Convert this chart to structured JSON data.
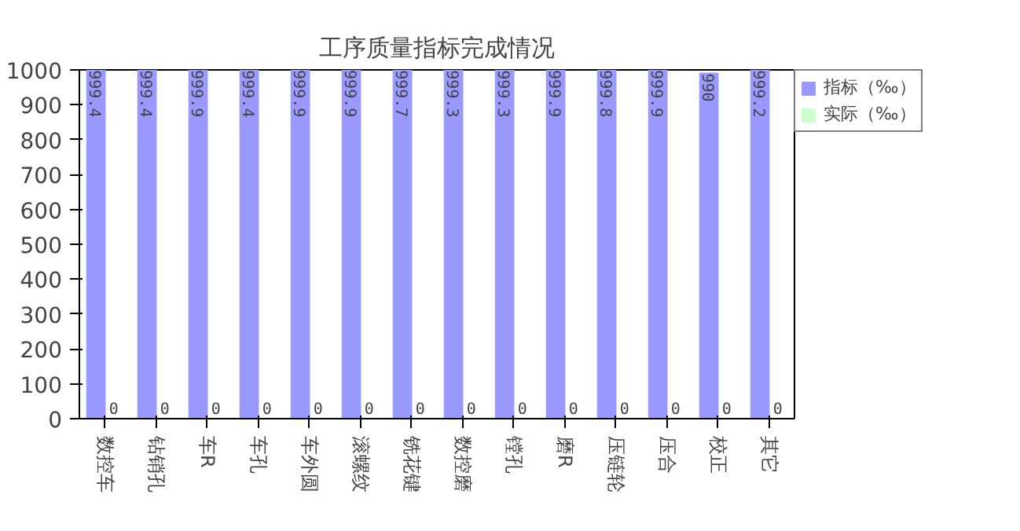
{
  "chart_data": {
    "type": "bar",
    "title": "工序质量指标完成情况",
    "categories": [
      "数控车",
      "钻销孔",
      "车R",
      "车孔",
      "车外圆",
      "滚螺纹",
      "铣花键",
      "数控磨",
      "镗孔",
      "磨R",
      "压链轮",
      "压合",
      "校正",
      "其它"
    ],
    "series": [
      {
        "name": "指标（‰）",
        "color": "#9999ff",
        "values": [
          999.4,
          999.4,
          999.9,
          999.4,
          999.9,
          999.9,
          999.7,
          999.3,
          999.3,
          999.9,
          999.8,
          999.9,
          990,
          999.2
        ]
      },
      {
        "name": "实际（‰）",
        "color": "#ccffcc",
        "values": [
          0,
          0,
          0,
          0,
          0,
          0,
          0,
          0,
          0,
          0,
          0,
          0,
          0,
          0
        ]
      }
    ],
    "ylim": [
      0,
      1000
    ],
    "yticks": [
      0,
      100,
      200,
      300,
      400,
      500,
      600,
      700,
      800,
      900,
      1000
    ],
    "grid": false,
    "legend": "top right",
    "data_labels": true
  }
}
